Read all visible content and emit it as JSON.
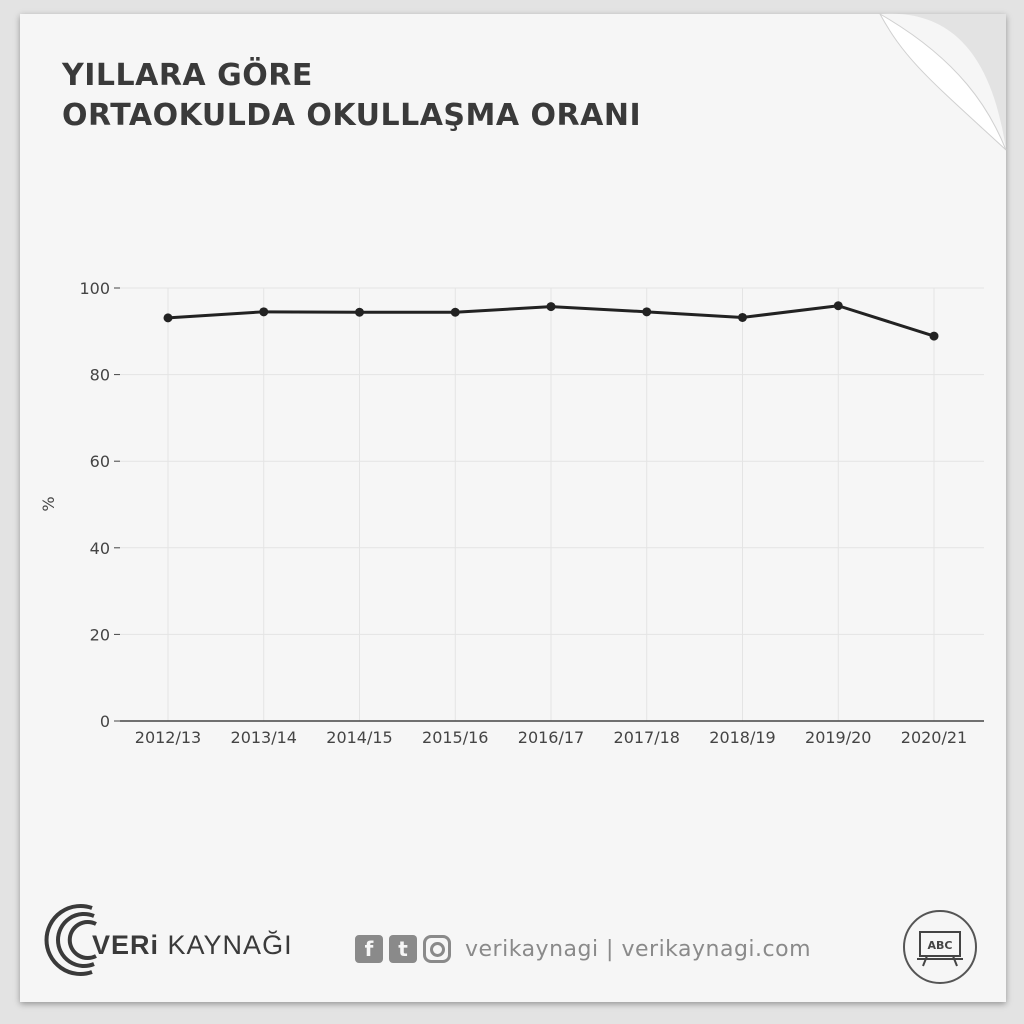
{
  "title": {
    "line1": "YILLARA GÖRE",
    "line2": "ORTAOKULDA OKULLAŞMA ORANI"
  },
  "chart_data": {
    "type": "line",
    "title": "YILLARA GÖRE ORTAOKULDA OKULLAŞMA ORANI",
    "xlabel": "",
    "ylabel": "%",
    "categories": [
      "2012/13",
      "2013/14",
      "2014/15",
      "2015/16",
      "2016/17",
      "2017/18",
      "2018/19",
      "2019/20",
      "2020/21"
    ],
    "series": [
      {
        "values": [
          93.1,
          94.5,
          94.4,
          94.4,
          95.7,
          94.5,
          93.2,
          95.9,
          88.9
        ]
      }
    ],
    "ylim": [
      0,
      100
    ],
    "yticks": [
      0,
      20,
      40,
      60,
      80,
      100
    ],
    "grid": true,
    "legend": "none",
    "colors": {
      "line": "#222222",
      "grid": "#e4e4e4",
      "axis": "#444444"
    }
  },
  "footer": {
    "brand_bold": "VERi",
    "brand_rest": " KAYNAĞI",
    "social_handle": "verikaynagi | verikaynagi.com",
    "icons": [
      "facebook-icon",
      "twitter-icon",
      "instagram-icon"
    ],
    "facebook_glyph": "f",
    "twitter_glyph": "t",
    "abc_label": "ABC"
  }
}
